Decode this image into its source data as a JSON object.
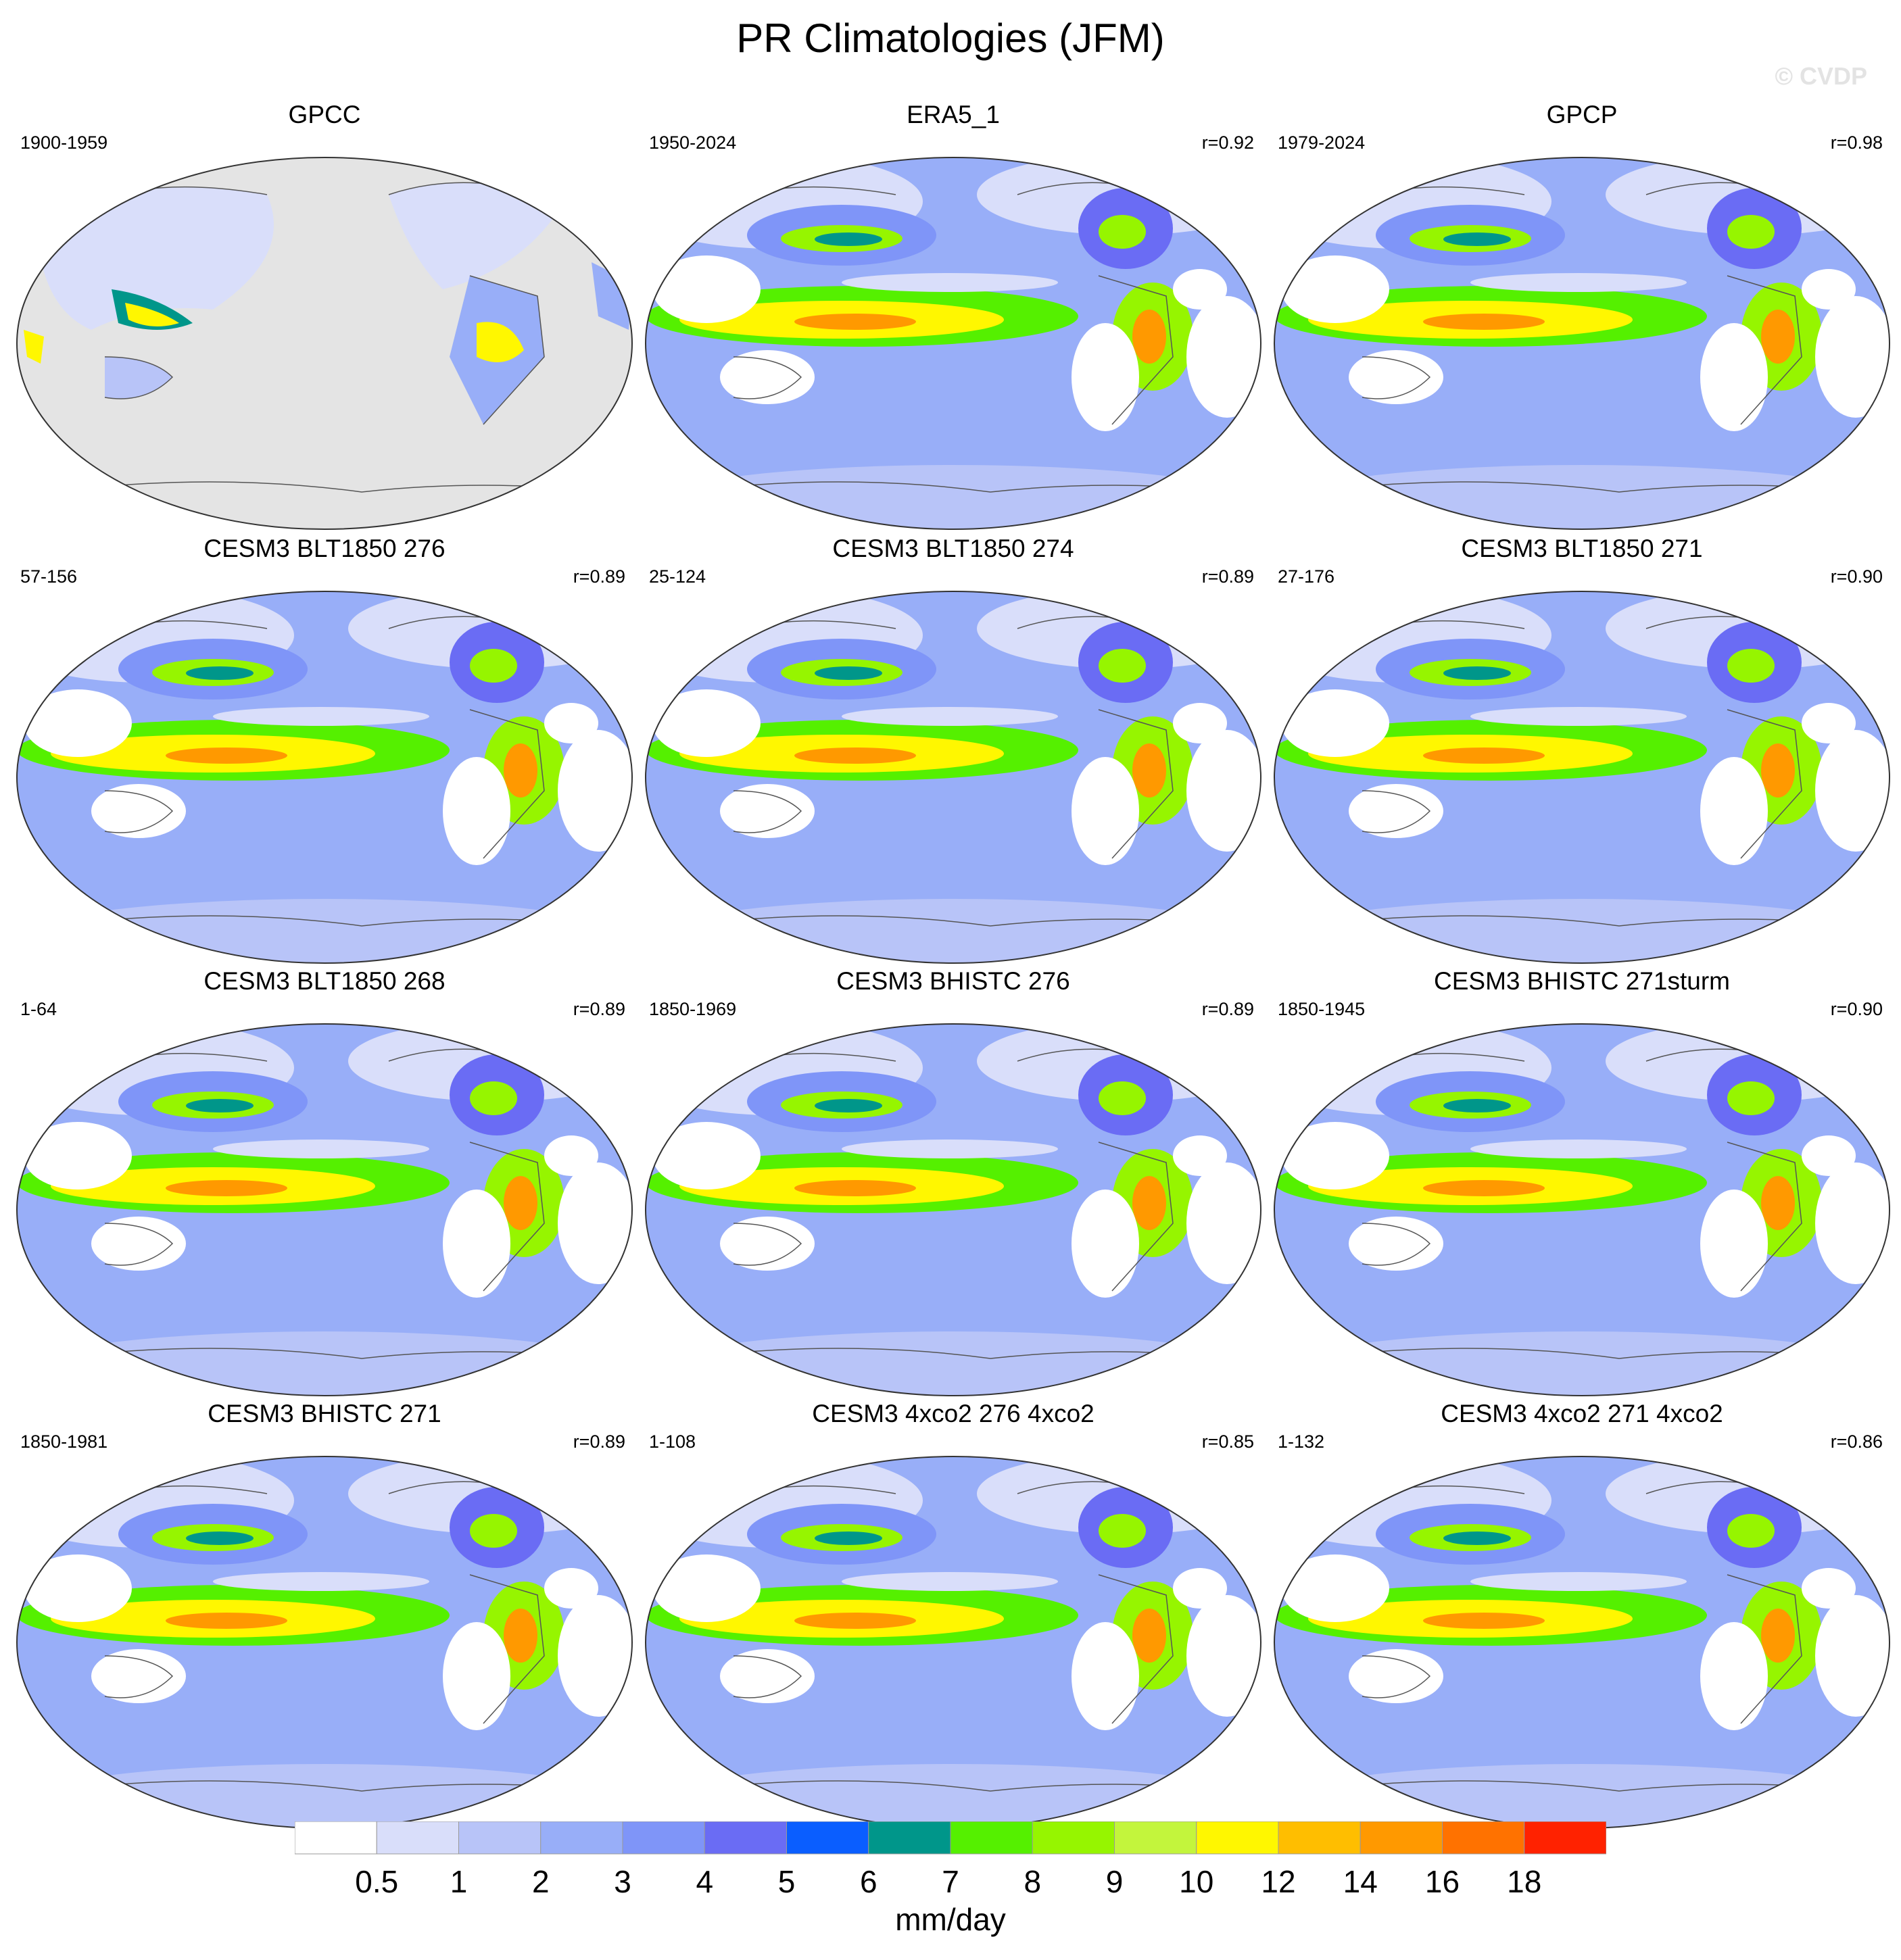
{
  "title": "PR Climatologies (JFM)",
  "watermark": "© CVDP",
  "panels": [
    {
      "title": "GPCC",
      "period": "1900-1959",
      "r": "",
      "land_only": true
    },
    {
      "title": "ERA5_1",
      "period": "1950-2024",
      "r": "r=0.92",
      "land_only": false
    },
    {
      "title": "GPCP",
      "period": "1979-2024",
      "r": "r=0.98",
      "land_only": false
    },
    {
      "title": "CESM3 BLT1850 276",
      "period": "57-156",
      "r": "r=0.89",
      "land_only": false
    },
    {
      "title": "CESM3 BLT1850 274",
      "period": "25-124",
      "r": "r=0.89",
      "land_only": false
    },
    {
      "title": "CESM3 BLT1850 271",
      "period": "27-176",
      "r": "r=0.90",
      "land_only": false
    },
    {
      "title": "CESM3 BLT1850 268",
      "period": "1-64",
      "r": "r=0.89",
      "land_only": false
    },
    {
      "title": "CESM3 BHISTC 276",
      "period": "1850-1969",
      "r": "r=0.89",
      "land_only": false
    },
    {
      "title": "CESM3 BHISTC 271sturm",
      "period": "1850-1945",
      "r": "r=0.90",
      "land_only": false
    },
    {
      "title": "CESM3 BHISTC 271",
      "period": "1850-1981",
      "r": "r=0.89",
      "land_only": false
    },
    {
      "title": "CESM3 4xco2 276 4xco2",
      "period": "1-108",
      "r": "r=0.85",
      "land_only": false
    },
    {
      "title": "CESM3 4xco2 271 4xco2",
      "period": "1-132",
      "r": "r=0.86",
      "land_only": false
    }
  ],
  "colorbar": {
    "levels": [
      "0.5",
      "1",
      "2",
      "3",
      "4",
      "5",
      "6",
      "7",
      "8",
      "9",
      "10",
      "12",
      "14",
      "16",
      "18"
    ],
    "colors": [
      "#ffffff",
      "#d9defa",
      "#b8c4f8",
      "#98aef8",
      "#7f95f8",
      "#6a6cf4",
      "#0a5eff",
      "#00968a",
      "#55f000",
      "#96f500",
      "#c3f53c",
      "#fff700",
      "#ffbe00",
      "#ff9900",
      "#ff7200",
      "#ff2200"
    ],
    "unit": "mm/day"
  }
}
